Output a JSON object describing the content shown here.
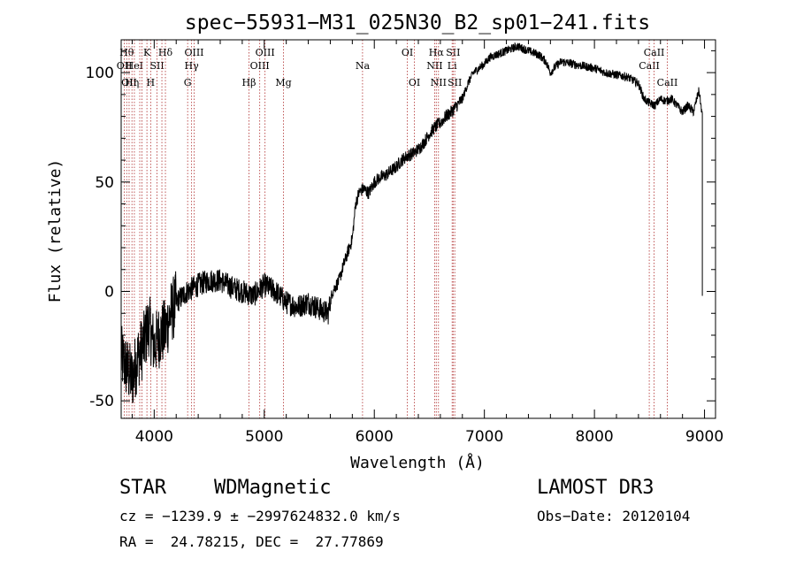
{
  "chart_data": {
    "type": "line",
    "title": "spec−55931−M31_025N30_B2_sp01−241.fits",
    "xlabel": "Wavelength (Å)",
    "ylabel": "Flux (relative)",
    "xlim": [
      3700,
      9100
    ],
    "ylim": [
      -58,
      115
    ],
    "xticks": [
      4000,
      5000,
      6000,
      7000,
      8000,
      9000
    ],
    "yticks": [
      -50,
      0,
      50,
      100
    ],
    "series": [
      {
        "name": "spectrum",
        "x": [
          3700,
          3750,
          3800,
          3850,
          3900,
          3950,
          4000,
          4050,
          4100,
          4150,
          4200,
          4300,
          4400,
          4500,
          4600,
          4700,
          4800,
          4900,
          5000,
          5100,
          5200,
          5300,
          5400,
          5500,
          5580,
          5620,
          5680,
          5720,
          5760,
          5800,
          5830,
          5860,
          5900,
          5950,
          6000,
          6050,
          6100,
          6150,
          6200,
          6250,
          6300,
          6350,
          6400,
          6450,
          6500,
          6550,
          6600,
          6650,
          6700,
          6750,
          6800,
          6850,
          6900,
          6950,
          7000,
          7050,
          7100,
          7200,
          7300,
          7400,
          7500,
          7560,
          7600,
          7650,
          7700,
          7800,
          7900,
          8000,
          8100,
          8200,
          8300,
          8400,
          8450,
          8500,
          8550,
          8600,
          8650,
          8700,
          8750,
          8800,
          8850,
          8900,
          8950,
          8980
        ],
        "y": [
          -30,
          -35,
          -40,
          -30,
          -25,
          -15,
          -25,
          -20,
          -18,
          -10,
          -5,
          0,
          3,
          5,
          5,
          2,
          0,
          -2,
          3,
          0,
          -5,
          -7,
          -5,
          -8,
          -10,
          0,
          5,
          12,
          18,
          24,
          40,
          45,
          47,
          45,
          50,
          52,
          53,
          55,
          57,
          60,
          62,
          63,
          65,
          68,
          72,
          75,
          77,
          80,
          82,
          85,
          88,
          95,
          100,
          102,
          104,
          107,
          108,
          110,
          112,
          110,
          108,
          105,
          100,
          103,
          105,
          104,
          103,
          102,
          100,
          99,
          98,
          95,
          88,
          86,
          85,
          88,
          87,
          88,
          85,
          82,
          85,
          82,
          92,
          80
        ]
      }
    ],
    "lines": [
      {
        "w": 3729,
        "label": "OII",
        "row": 2
      },
      {
        "w": 3750,
        "label": "Hθ",
        "row": 1
      },
      {
        "w": 3772,
        "label": "OII",
        "row": 3
      },
      {
        "w": 3798,
        "label": "Hη",
        "row": 3
      },
      {
        "w": 3820,
        "label": "HeI",
        "row": 2
      },
      {
        "w": 3869,
        "label": "",
        "row": 0
      },
      {
        "w": 3889,
        "label": "",
        "row": 0
      },
      {
        "w": 3934,
        "label": "K",
        "row": 1
      },
      {
        "w": 3968,
        "label": "H",
        "row": 3
      },
      {
        "w": 4026,
        "label": "SII",
        "row": 2
      },
      {
        "w": 4070,
        "label": "",
        "row": 0
      },
      {
        "w": 4102,
        "label": "Hδ",
        "row": 1
      },
      {
        "w": 4304,
        "label": "G",
        "row": 3
      },
      {
        "w": 4340,
        "label": "Hγ",
        "row": 2
      },
      {
        "w": 4363,
        "label": "OIII",
        "row": 1
      },
      {
        "w": 4861,
        "label": "Hβ",
        "row": 3
      },
      {
        "w": 4959,
        "label": "OIII",
        "row": 2
      },
      {
        "w": 5007,
        "label": "OIII",
        "row": 1
      },
      {
        "w": 5175,
        "label": "Mg",
        "row": 3
      },
      {
        "w": 5893,
        "label": "Na",
        "row": 2
      },
      {
        "w": 6300,
        "label": "OI",
        "row": 1
      },
      {
        "w": 6364,
        "label": "OI",
        "row": 3
      },
      {
        "w": 6548,
        "label": "NII",
        "row": 2
      },
      {
        "w": 6563,
        "label": "Hα",
        "row": 1
      },
      {
        "w": 6583,
        "label": "NII",
        "row": 3
      },
      {
        "w": 6707,
        "label": "Li",
        "row": 2
      },
      {
        "w": 6716,
        "label": "SII",
        "row": 1
      },
      {
        "w": 6731,
        "label": "SII",
        "row": 3
      },
      {
        "w": 8498,
        "label": "CaII",
        "row": 2
      },
      {
        "w": 8542,
        "label": "CaII",
        "row": 1
      },
      {
        "w": 8662,
        "label": "CaII",
        "row": 3
      }
    ]
  },
  "footer": {
    "class": "STAR",
    "subclass": "WDMagnetic",
    "survey": "LAMOST DR3",
    "cz": "cz = −1239.9 ± −2997624832.0 km/s",
    "obs_date": "Obs−Date: 20120104",
    "radec": "RA =  24.78215, DEC =  27.77869"
  }
}
